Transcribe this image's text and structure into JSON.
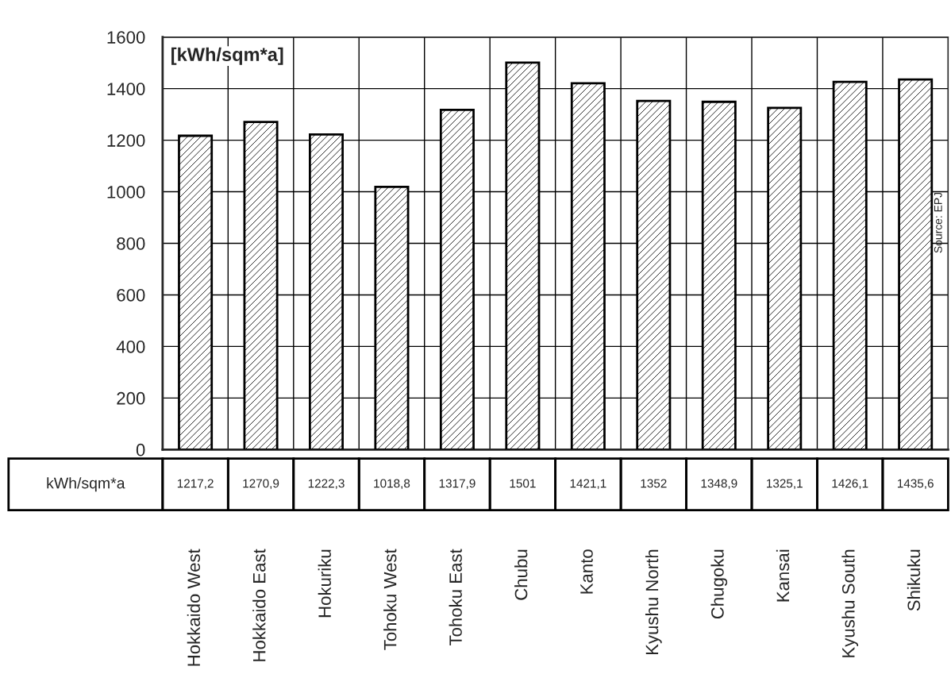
{
  "chart_data": {
    "type": "bar",
    "ylabel": "[kWh/sqm*a]",
    "categories": [
      "Hokkaido West",
      "Hokkaido East",
      "Hokuriku",
      "Tohoku West",
      "Tohoku East",
      "Chubu",
      "Kanto",
      "Kyushu North",
      "Chugoku",
      "Kansai",
      "Kyushu South",
      "Shikuku"
    ],
    "values": [
      1217.2,
      1270.9,
      1222.3,
      1018.8,
      1317.9,
      1501,
      1421.1,
      1352,
      1348.9,
      1325.1,
      1426.1,
      1435.6
    ],
    "value_labels": [
      "1217,2",
      "1270,9",
      "1222,3",
      "1018,8",
      "1317,9",
      "1501",
      "1421,1",
      "1352",
      "1348,9",
      "1325,1",
      "1426,1",
      "1435,6"
    ],
    "color": "#000000",
    "ylim": [
      0,
      1600
    ],
    "yticks": [
      0,
      200,
      400,
      600,
      800,
      1000,
      1200,
      1400,
      1600
    ],
    "grid": true,
    "annotations": [
      "kWh/sqm*a",
      "Source: EPJ"
    ]
  }
}
